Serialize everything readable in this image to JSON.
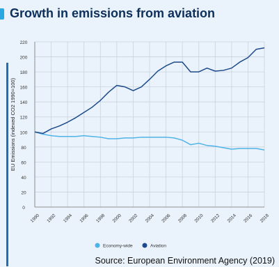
{
  "chart_data": {
    "type": "line",
    "title": "Growth in emissions from aviation",
    "ylabel": "EU Emissions (indexed CO2 1990=100)",
    "xlabel": "",
    "ylim": [
      0,
      220
    ],
    "yticks": [
      0,
      20,
      40,
      60,
      80,
      100,
      120,
      140,
      160,
      180,
      200,
      220
    ],
    "x": [
      1990,
      1991,
      1992,
      1993,
      1994,
      1995,
      1996,
      1997,
      1998,
      1999,
      2000,
      2001,
      2002,
      2003,
      2004,
      2005,
      2006,
      2007,
      2008,
      2009,
      2010,
      2011,
      2012,
      2013,
      2014,
      2015,
      2016,
      2017,
      2018
    ],
    "xticks": [
      "1990",
      "1992",
      "1994",
      "1996",
      "1998",
      "2000",
      "2002",
      "2004",
      "2006",
      "2008",
      "2010",
      "2012",
      "2014",
      "2016",
      "2018"
    ],
    "series": [
      {
        "name": "Economy-wide",
        "color": "#4fb3e8",
        "values": [
          100,
          97,
          95,
          94,
          94,
          94,
          95,
          94,
          93,
          91,
          91,
          92,
          92,
          93,
          93,
          93,
          93,
          92,
          89,
          83,
          85,
          82,
          81,
          79,
          77,
          78,
          78,
          78,
          76
        ]
      },
      {
        "name": "Aviation",
        "color": "#1c4a8a",
        "values": [
          100,
          98,
          104,
          108,
          113,
          119,
          126,
          133,
          142,
          153,
          162,
          160,
          155,
          160,
          170,
          181,
          188,
          193,
          193,
          180,
          180,
          185,
          181,
          182,
          185,
          193,
          199,
          210,
          212
        ]
      }
    ],
    "grid": true,
    "legend_position": "bottom"
  },
  "source": "Source: European Environment Agency (2019)",
  "colors": {
    "accent": "#2aa7e0",
    "title": "#0c2f5c",
    "background": "#eaf3fb"
  }
}
